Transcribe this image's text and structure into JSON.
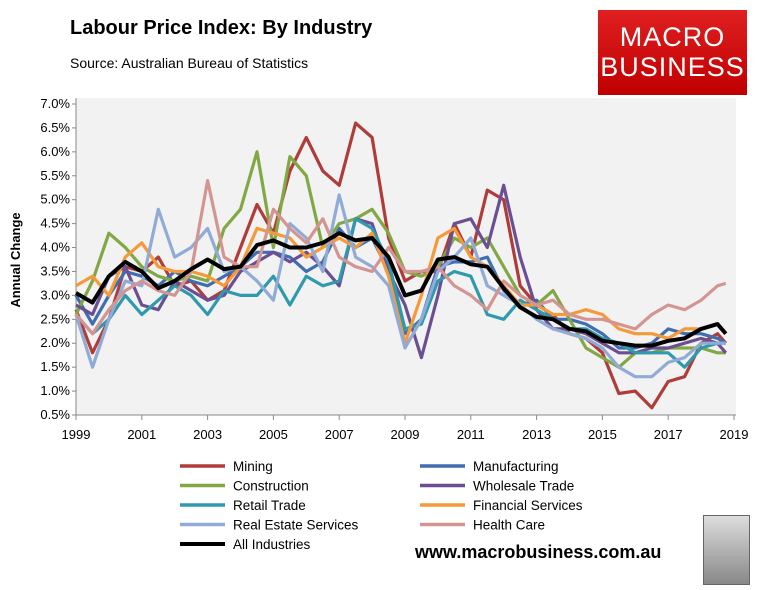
{
  "header": {
    "title": "Labour Price Index: By Industry",
    "source": "Source: Australian Bureau of Statistics"
  },
  "logo": {
    "line1": "MACRO",
    "line2": "BUSINESS",
    "color": "#d40f0f"
  },
  "footer": {
    "url": "www.macrobusiness.com.au"
  },
  "chart_data": {
    "type": "line",
    "title": "Labour Price Index: By Industry",
    "ylabel": "Annual Change",
    "xlabel": "",
    "ylim": [
      0.5,
      7.0
    ],
    "xlim": [
      1999,
      2019
    ],
    "yticks": [
      "0.5%",
      "1.0%",
      "1.5%",
      "2.0%",
      "2.5%",
      "3.0%",
      "3.5%",
      "4.0%",
      "4.5%",
      "5.0%",
      "5.5%",
      "6.0%",
      "6.5%",
      "7.0%"
    ],
    "xticks": [
      "1999",
      "2001",
      "2003",
      "2005",
      "2007",
      "2009",
      "2011",
      "2013",
      "2015",
      "2017",
      "2019"
    ],
    "grid": false,
    "legend_placement": "bottom",
    "x": [
      1999,
      1999.5,
      2000,
      2000.5,
      2001,
      2001.5,
      2002,
      2002.5,
      2003,
      2003.5,
      2004,
      2004.5,
      2005,
      2005.5,
      2006,
      2006.5,
      2007,
      2007.5,
      2008,
      2008.5,
      2009,
      2009.5,
      2010,
      2010.5,
      2011,
      2011.5,
      2012,
      2012.5,
      2013,
      2013.5,
      2014,
      2014.5,
      2015,
      2015.5,
      2016,
      2016.5,
      2017,
      2017.5,
      2018,
      2018.5,
      2018.75
    ],
    "series": [
      {
        "name": "Mining",
        "color": "#b03c3a",
        "values": [
          2.7,
          1.8,
          2.5,
          3.6,
          3.5,
          3.8,
          3.2,
          3.3,
          2.9,
          3.1,
          4.0,
          4.9,
          4.3,
          5.6,
          6.3,
          5.6,
          5.3,
          6.6,
          6.3,
          4.2,
          3.3,
          3.5,
          3.5,
          4.5,
          3.8,
          5.2,
          5.0,
          3.2,
          2.8,
          2.6,
          2.2,
          2.1,
          1.8,
          0.95,
          1.0,
          0.65,
          1.2,
          1.3,
          2.0,
          2.2,
          2.0
        ]
      },
      {
        "name": "Manufacturing",
        "color": "#3f6fb0",
        "values": [
          3.0,
          2.4,
          3.0,
          3.5,
          3.4,
          3.2,
          3.5,
          3.3,
          3.2,
          3.4,
          3.6,
          3.9,
          3.9,
          3.8,
          3.5,
          3.7,
          4.4,
          4.0,
          4.2,
          3.5,
          2.2,
          2.5,
          3.6,
          3.7,
          3.7,
          3.8,
          3.1,
          2.8,
          2.9,
          2.5,
          2.5,
          2.4,
          2.2,
          1.9,
          1.9,
          2.0,
          2.3,
          2.2,
          2.2,
          2.1,
          2.0
        ]
      },
      {
        "name": "Construction",
        "color": "#82a844",
        "values": [
          2.6,
          3.3,
          4.3,
          4.0,
          3.6,
          3.4,
          3.3,
          3.4,
          3.3,
          4.4,
          4.8,
          6.0,
          4.0,
          5.9,
          5.5,
          4.0,
          4.5,
          4.6,
          4.8,
          4.3,
          3.5,
          3.4,
          3.6,
          4.2,
          4.0,
          4.2,
          3.6,
          3.0,
          2.8,
          3.1,
          2.5,
          1.9,
          1.7,
          1.5,
          1.8,
          1.8,
          1.9,
          1.9,
          1.9,
          1.8,
          1.8
        ]
      },
      {
        "name": "Wholesale Trade",
        "color": "#6b4f93",
        "values": [
          2.8,
          2.6,
          3.4,
          3.6,
          2.8,
          2.7,
          3.3,
          3.1,
          2.9,
          3.0,
          3.5,
          3.7,
          3.9,
          3.7,
          3.9,
          3.6,
          3.2,
          4.6,
          4.5,
          3.5,
          2.8,
          1.7,
          3.0,
          4.5,
          4.6,
          4.0,
          5.3,
          3.8,
          2.7,
          2.3,
          2.3,
          2.2,
          2.0,
          1.8,
          1.8,
          1.9,
          1.9,
          2.0,
          2.1,
          2.0,
          1.8
        ]
      },
      {
        "name": "Retail Trade",
        "color": "#2f99ad",
        "values": [
          2.6,
          2.2,
          2.5,
          3.0,
          2.6,
          2.9,
          3.2,
          3.0,
          2.6,
          3.1,
          3.0,
          3.0,
          3.4,
          2.8,
          3.4,
          3.2,
          3.3,
          4.6,
          4.4,
          3.7,
          2.3,
          2.4,
          3.3,
          3.5,
          3.4,
          2.6,
          2.5,
          2.9,
          2.7,
          2.5,
          2.3,
          2.3,
          2.1,
          2.0,
          1.8,
          1.8,
          1.8,
          1.5,
          1.9,
          2.0,
          2.0
        ]
      },
      {
        "name": "Financial Services",
        "color": "#f59a3a",
        "values": [
          3.2,
          3.4,
          3.0,
          3.8,
          4.1,
          3.6,
          3.5,
          3.5,
          3.4,
          3.2,
          3.6,
          4.4,
          4.3,
          4.2,
          3.8,
          4.0,
          4.2,
          4.0,
          4.3,
          3.4,
          2.0,
          3.0,
          4.2,
          4.4,
          3.8,
          3.6,
          3.2,
          2.8,
          2.8,
          2.6,
          2.6,
          2.7,
          2.6,
          2.3,
          2.2,
          2.2,
          2.1,
          2.3,
          2.3,
          2.4,
          2.2
        ]
      },
      {
        "name": "Real Estate Services",
        "color": "#8fabd6",
        "values": [
          2.6,
          1.5,
          2.5,
          3.3,
          3.2,
          4.8,
          3.8,
          4.0,
          4.4,
          3.5,
          3.6,
          3.3,
          2.9,
          4.5,
          4.2,
          3.5,
          5.1,
          3.8,
          3.6,
          3.2,
          1.9,
          2.5,
          3.5,
          3.8,
          4.2,
          3.2,
          3.0,
          2.8,
          2.5,
          2.3,
          2.2,
          2.1,
          1.9,
          1.5,
          1.3,
          1.3,
          1.6,
          1.7,
          2.0,
          2.0,
          2.0
        ]
      },
      {
        "name": "Health Care",
        "color": "#d49592",
        "values": [
          2.6,
          2.2,
          2.7,
          3.1,
          3.3,
          3.1,
          3.0,
          3.5,
          5.4,
          3.8,
          3.6,
          3.6,
          4.8,
          4.4,
          4.1,
          4.6,
          3.8,
          3.6,
          3.5,
          4.0,
          3.5,
          3.5,
          3.6,
          3.2,
          3.0,
          2.7,
          3.3,
          3.0,
          2.8,
          2.9,
          2.6,
          2.5,
          2.5,
          2.4,
          2.3,
          2.6,
          2.8,
          2.7,
          2.9,
          3.2,
          3.25
        ]
      },
      {
        "name": "All Industries",
        "color": "#000000",
        "values": [
          3.05,
          2.85,
          3.4,
          3.7,
          3.5,
          3.15,
          3.3,
          3.55,
          3.75,
          3.55,
          3.6,
          4.05,
          4.15,
          4.0,
          4.0,
          4.1,
          4.3,
          4.15,
          4.2,
          3.8,
          3.0,
          3.1,
          3.75,
          3.8,
          3.65,
          3.6,
          3.15,
          2.75,
          2.55,
          2.5,
          2.3,
          2.25,
          2.05,
          2.0,
          1.95,
          1.95,
          2.05,
          2.1,
          2.3,
          2.4,
          2.2
        ]
      }
    ]
  }
}
